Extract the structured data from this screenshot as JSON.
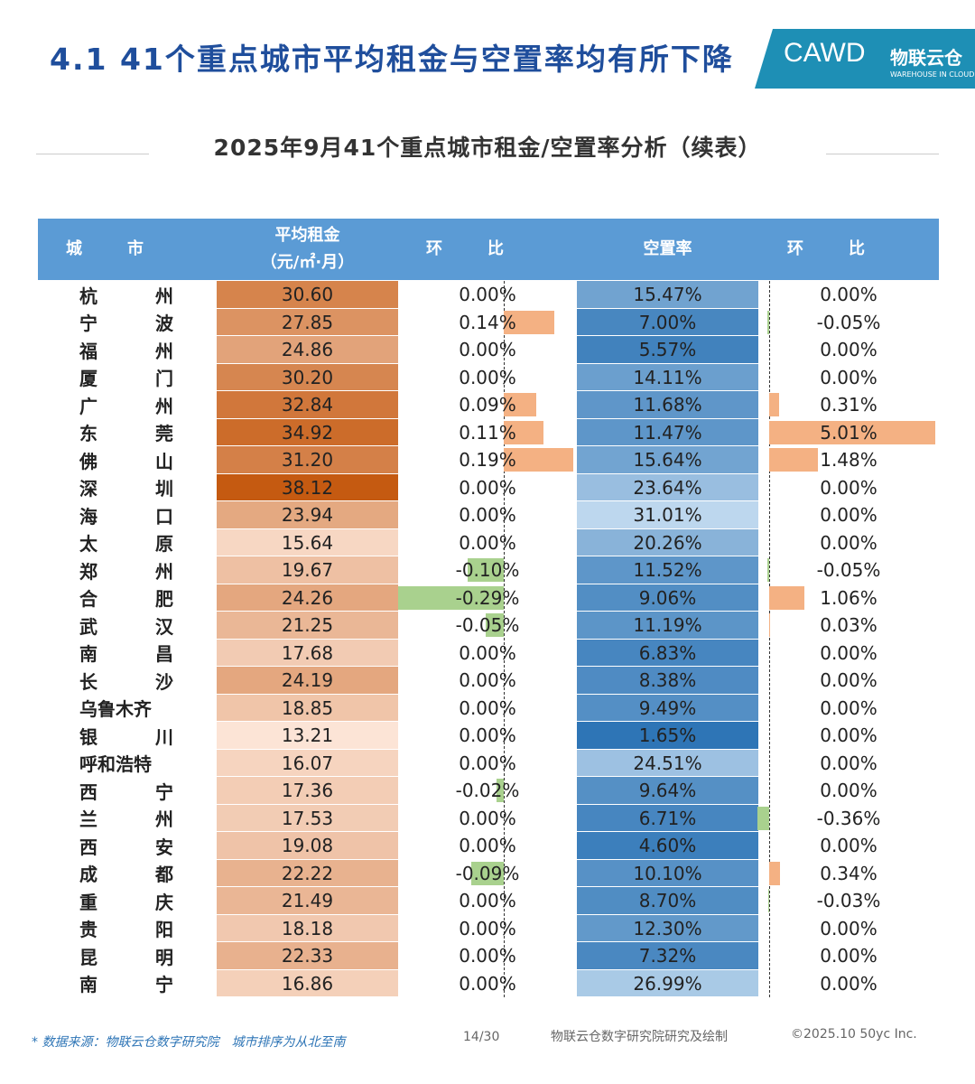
{
  "header": {
    "title": "4.1 41个重点城市平均租金与空置率均有所下降",
    "logo": {
      "brand": "CAWD",
      "name": "物联云仓",
      "tagline": "WAREHOUSE IN CLOUD"
    }
  },
  "subtitle": "2025年9月41个重点城市租金/空置率分析（续表）",
  "table": {
    "columns": [
      "城市",
      "平均租金（元/㎡·月）",
      "环比",
      "空置率",
      "环比"
    ],
    "rows": [
      [
        "杭州",
        "30.60",
        "0.00%",
        "15.47%",
        "0.00%"
      ],
      [
        "宁波",
        "27.85",
        "0.14%",
        "7.00%",
        "-0.05%"
      ],
      [
        "福州",
        "24.86",
        "0.00%",
        "5.57%",
        "0.00%"
      ],
      [
        "厦门",
        "30.20",
        "0.00%",
        "14.11%",
        "0.00%"
      ],
      [
        "广州",
        "32.84",
        "0.09%",
        "11.68%",
        "0.31%"
      ],
      [
        "东莞",
        "34.92",
        "0.11%",
        "11.47%",
        "5.01%"
      ],
      [
        "佛山",
        "31.20",
        "0.19%",
        "15.64%",
        "1.48%"
      ],
      [
        "深圳",
        "38.12",
        "0.00%",
        "23.64%",
        "0.00%"
      ],
      [
        "海口",
        "23.94",
        "0.00%",
        "31.01%",
        "0.00%"
      ],
      [
        "太原",
        "15.64",
        "0.00%",
        "20.26%",
        "0.00%"
      ],
      [
        "郑州",
        "19.67",
        "-0.10%",
        "11.52%",
        "-0.05%"
      ],
      [
        "合肥",
        "24.26",
        "-0.29%",
        "9.06%",
        "1.06%"
      ],
      [
        "武汉",
        "21.25",
        "-0.05%",
        "11.19%",
        "0.03%"
      ],
      [
        "南昌",
        "17.68",
        "0.00%",
        "6.83%",
        "0.00%"
      ],
      [
        "长沙",
        "24.19",
        "0.00%",
        "8.38%",
        "0.00%"
      ],
      [
        "乌鲁木齐",
        "18.85",
        "0.00%",
        "9.49%",
        "0.00%"
      ],
      [
        "银川",
        "13.21",
        "0.00%",
        "1.65%",
        "0.00%"
      ],
      [
        "呼和浩特",
        "16.07",
        "0.00%",
        "24.51%",
        "0.00%"
      ],
      [
        "西宁",
        "17.36",
        "-0.02%",
        "9.64%",
        "0.00%"
      ],
      [
        "兰州",
        "17.53",
        "0.00%",
        "6.71%",
        "-0.36%"
      ],
      [
        "西安",
        "19.08",
        "0.00%",
        "4.60%",
        "0.00%"
      ],
      [
        "成都",
        "22.22",
        "-0.09%",
        "10.10%",
        "0.34%"
      ],
      [
        "重庆",
        "21.49",
        "0.00%",
        "8.70%",
        "-0.03%"
      ],
      [
        "贵阳",
        "18.18",
        "0.00%",
        "12.30%",
        "0.00%"
      ],
      [
        "昆明",
        "22.33",
        "0.00%",
        "7.32%",
        "0.00%"
      ],
      [
        "南宁",
        "16.86",
        "0.00%",
        "26.99%",
        "0.00%"
      ]
    ]
  },
  "footer": {
    "source": "* 数据来源：物联云仓数字研究院　城市排序为从北至南",
    "page": "14/30",
    "credit": "物联云仓数字研究院研究及绘制",
    "copyright": "©2025.10 50yc Inc."
  }
}
